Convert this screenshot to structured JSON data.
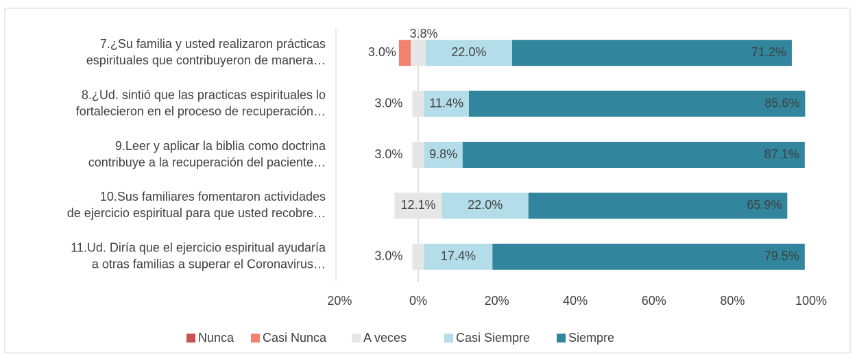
{
  "chart_data": {
    "type": "diverging-stacked-bar",
    "categories": [
      [
        "7.¿Su familia y usted realizaron prácticas",
        "espirituales que contribuyeron de manera…"
      ],
      [
        "8.¿Ud. sintió que las practicas espirituales lo",
        "fortalecieron en el proceso de recuperación…"
      ],
      [
        "9.Leer y aplicar la biblia como doctrina",
        "contribuye a la recuperación del paciente…"
      ],
      [
        "10.Sus familiares fomentaron actividades",
        "de ejercicio espiritual para que usted recobre…"
      ],
      [
        "11.Ud. Diría que el ejercicio espiritual ayudaría",
        "a otras familias a superar el Coronavirus…"
      ]
    ],
    "series": [
      {
        "name": "Nunca",
        "color": "#c9514f",
        "values": [
          0,
          0,
          0,
          0,
          0
        ],
        "value_labels": [
          null,
          null,
          null,
          null,
          null
        ]
      },
      {
        "name": "Casi Nunca",
        "color": "#f4806e",
        "values": [
          3.0,
          0,
          0,
          0,
          0
        ],
        "value_labels": [
          "3.0%",
          null,
          null,
          null,
          null
        ]
      },
      {
        "name": "A veces",
        "color": "#e6e6e6",
        "values": [
          3.8,
          3.0,
          3.0,
          12.1,
          3.0
        ],
        "value_labels": [
          "3.8%",
          "3.0%",
          "3.0%",
          "12.1%",
          "3.0%"
        ]
      },
      {
        "name": "Casi Siempre",
        "color": "#b3dde8",
        "values": [
          22.0,
          11.4,
          9.8,
          22.0,
          17.4
        ],
        "value_labels": [
          "22.0%",
          "11.4%",
          "9.8%",
          "22.0%",
          "17.4%"
        ]
      },
      {
        "name": "Siempre",
        "color": "#31859c",
        "values": [
          71.2,
          85.6,
          87.1,
          65.9,
          79.5
        ],
        "value_labels": [
          "71.2%",
          "85.6%",
          "87.1%",
          "65.9%",
          "79.5%"
        ]
      }
    ],
    "xlim": [
      -20,
      100
    ],
    "xticks": [
      {
        "value": -20,
        "label": "20%"
      },
      {
        "value": 0,
        "label": "0%"
      },
      {
        "value": 20,
        "label": "20%"
      },
      {
        "value": 40,
        "label": "40%"
      },
      {
        "value": 60,
        "label": "60%"
      },
      {
        "value": 80,
        "label": "80%"
      },
      {
        "value": 100,
        "label": "100%"
      }
    ],
    "legend": "bottom"
  }
}
